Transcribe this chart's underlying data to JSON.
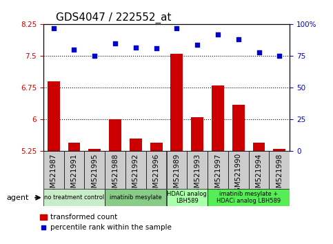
{
  "title": "GDS4047 / 222552_at",
  "samples": [
    "GSM521987",
    "GSM521991",
    "GSM521995",
    "GSM521988",
    "GSM521992",
    "GSM521996",
    "GSM521989",
    "GSM521993",
    "GSM521997",
    "GSM521990",
    "GSM521994",
    "GSM521998"
  ],
  "bar_values": [
    6.9,
    5.45,
    5.3,
    6.0,
    5.55,
    5.45,
    7.55,
    6.05,
    6.8,
    6.35,
    5.45,
    5.3
  ],
  "dot_values": [
    97,
    80,
    75,
    85,
    82,
    81,
    97,
    84,
    92,
    88,
    78,
    75
  ],
  "ylim_left": [
    5.25,
    8.25
  ],
  "ylim_right": [
    0,
    100
  ],
  "yticks_left": [
    5.25,
    6.0,
    6.75,
    7.5,
    8.25
  ],
  "ytick_labels_left": [
    "5.25",
    "6",
    "6.75",
    "7.5",
    "8.25"
  ],
  "yticks_right": [
    0,
    25,
    50,
    75,
    100
  ],
  "ytick_labels_right": [
    "0",
    "25",
    "50",
    "75",
    "100%"
  ],
  "hlines": [
    7.5,
    6.75,
    6.0
  ],
  "bar_color": "#cc0000",
  "dot_color": "#0000cc",
  "agent_groups": [
    {
      "label": "no treatment control",
      "start": 0,
      "end": 3,
      "color": "#c8ecc8"
    },
    {
      "label": "imatinib mesylate",
      "start": 3,
      "end": 6,
      "color": "#88cc88"
    },
    {
      "label": "HDACi analog\nLBH589",
      "start": 6,
      "end": 8,
      "color": "#aaffaa"
    },
    {
      "label": "imatinib mesylate +\nHDACi analog LBH589",
      "start": 8,
      "end": 12,
      "color": "#55ee55"
    }
  ],
  "legend_bar_label": "transformed count",
  "legend_dot_label": "percentile rank within the sample",
  "agent_label": "agent",
  "title_fontsize": 11,
  "tick_fontsize": 7.5,
  "label_fontsize": 7.5
}
